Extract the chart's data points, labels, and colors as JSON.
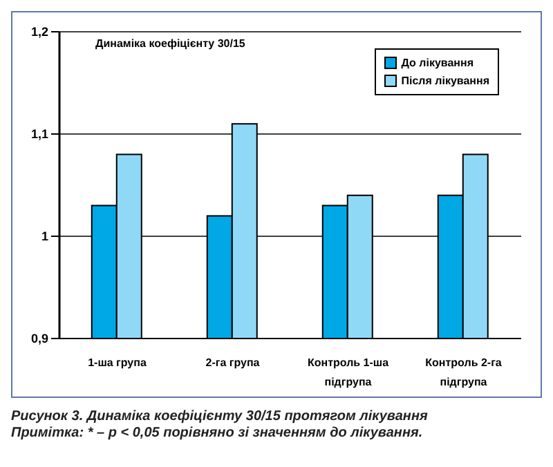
{
  "chart_data": {
    "type": "bar",
    "title": "Динаміка коефіцієнту 30/15",
    "categories": [
      "1-ша група",
      "2-га група",
      "Контроль 1-ша підгрупа",
      "Контроль 2-га підгрупа"
    ],
    "series": [
      {
        "name": "До лікування",
        "color": "#00a8e6",
        "values": [
          1.03,
          1.02,
          1.03,
          1.04
        ]
      },
      {
        "name": "Після лікування",
        "color": "#8fd9f7",
        "values": [
          1.08,
          1.11,
          1.04,
          1.08
        ]
      }
    ],
    "ylim": [
      0.9,
      1.2
    ],
    "yticks": [
      {
        "value": 0.9,
        "label": "0,9"
      },
      {
        "value": 1,
        "label": "1"
      },
      {
        "value": 1.1,
        "label": "1,1"
      },
      {
        "value": 1.2,
        "label": "1,2"
      }
    ],
    "grid": "y",
    "legend": "top right",
    "annotations": [
      "Рисунок 3. Динаміка коефіцієнту 30/15 протягом лікування",
      "Примітка: * – p < 0,05 порівняно зі значенням до лікування."
    ]
  }
}
